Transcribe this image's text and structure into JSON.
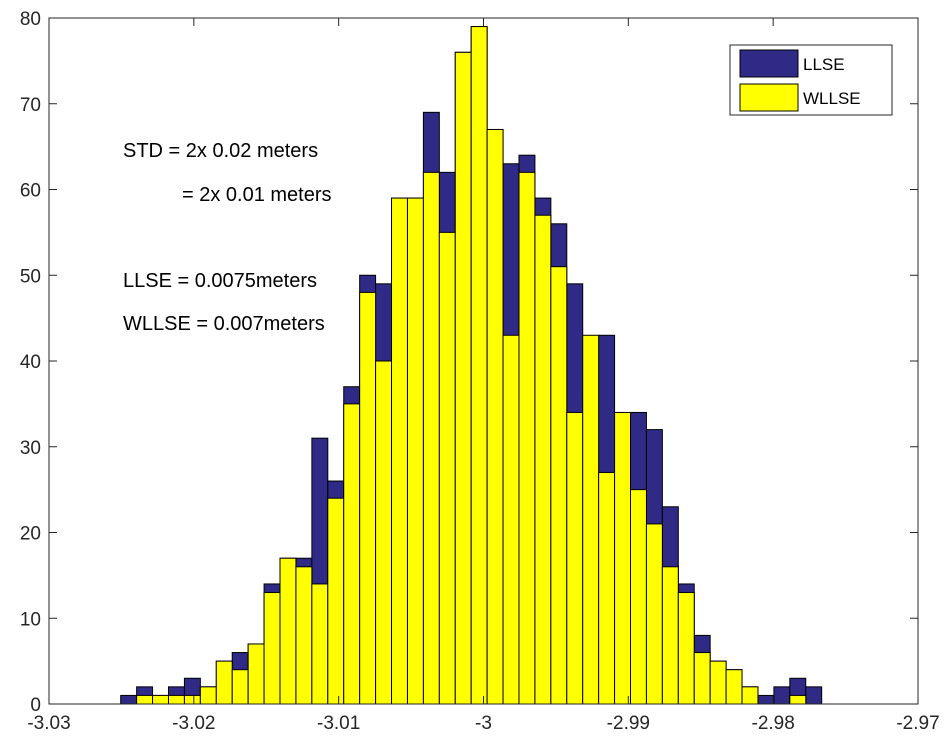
{
  "colors": {
    "background": "#ffffff",
    "axis": "#262626",
    "bar_edge": "#000000"
  },
  "chart_data": {
    "type": "bar",
    "title": "",
    "xlabel": "",
    "ylabel": "",
    "xlim": [
      -3.03,
      -2.97
    ],
    "ylim": [
      0,
      80
    ],
    "grid": false,
    "legend_position": "top-right",
    "xticks": [
      -3.03,
      -3.02,
      -3.01,
      -3,
      -2.99,
      -2.98,
      -2.97
    ],
    "xtick_labels": [
      "-3.03",
      "-3.02",
      "-3.01",
      "-3",
      "-2.99",
      "-2.98",
      "-2.97"
    ],
    "yticks": [
      0,
      10,
      20,
      30,
      40,
      50,
      60,
      70,
      80
    ],
    "ytick_labels": [
      "0",
      "10",
      "20",
      "30",
      "40",
      "50",
      "60",
      "70",
      "80"
    ],
    "series": [
      {
        "name": "LLSE",
        "color": "#2e2a86",
        "bin_width": 0.0011,
        "x": [
          -3.0245,
          -3.0234,
          -3.0223,
          -3.0212,
          -3.0201,
          -3.019,
          -3.0179,
          -3.0168,
          -3.0157,
          -3.0146,
          -3.0135,
          -3.0124,
          -3.0113,
          -3.0102,
          -3.0091,
          -3.008,
          -3.0069,
          -3.0058,
          -3.0047,
          -3.0036,
          -3.0025,
          -3.0014,
          -3.0003,
          -2.9992,
          -2.9981,
          -2.997,
          -2.9959,
          -2.9948,
          -2.9937,
          -2.9926,
          -2.9915,
          -2.9904,
          -2.9893,
          -2.9882,
          -2.9871,
          -2.986,
          -2.9849,
          -2.9838,
          -2.9827,
          -2.9816,
          -2.9805,
          -2.9794,
          -2.9783,
          -2.9772
        ],
        "values": [
          1,
          2,
          1,
          2,
          3,
          2,
          5,
          6,
          7,
          14,
          17,
          17,
          31,
          26,
          37,
          50,
          49,
          59,
          59,
          69,
          62,
          76,
          79,
          67,
          63,
          64,
          59,
          56,
          49,
          36,
          43,
          30,
          34,
          32,
          23,
          14,
          8,
          5,
          4,
          2,
          1,
          2,
          3,
          2
        ]
      },
      {
        "name": "WLLSE",
        "color": "#ffff00",
        "bin_width": 0.0011,
        "x": [
          -3.0245,
          -3.0234,
          -3.0223,
          -3.0212,
          -3.0201,
          -3.019,
          -3.0179,
          -3.0168,
          -3.0157,
          -3.0146,
          -3.0135,
          -3.0124,
          -3.0113,
          -3.0102,
          -3.0091,
          -3.008,
          -3.0069,
          -3.0058,
          -3.0047,
          -3.0036,
          -3.0025,
          -3.0014,
          -3.0003,
          -2.9992,
          -2.9981,
          -2.997,
          -2.9959,
          -2.9948,
          -2.9937,
          -2.9926,
          -2.9915,
          -2.9904,
          -2.9893,
          -2.9882,
          -2.9871,
          -2.986,
          -2.9849,
          -2.9838,
          -2.9827,
          -2.9816,
          -2.9805,
          -2.9794,
          -2.9783,
          -2.9772
        ],
        "values": [
          0,
          1,
          1,
          1,
          1,
          2,
          5,
          4,
          7,
          13,
          17,
          16,
          14,
          24,
          35,
          48,
          40,
          59,
          59,
          62,
          55,
          76,
          79,
          67,
          43,
          62,
          57,
          51,
          34,
          43,
          27,
          34,
          25,
          21,
          16,
          13,
          6,
          5,
          4,
          2,
          0,
          0,
          1,
          0
        ]
      }
    ],
    "annotations": [
      "STD = 2x 0.02 meters",
      "= 2x 0.01 meters",
      "LLSE = 0.0075meters",
      "WLLSE = 0.007meters"
    ]
  }
}
